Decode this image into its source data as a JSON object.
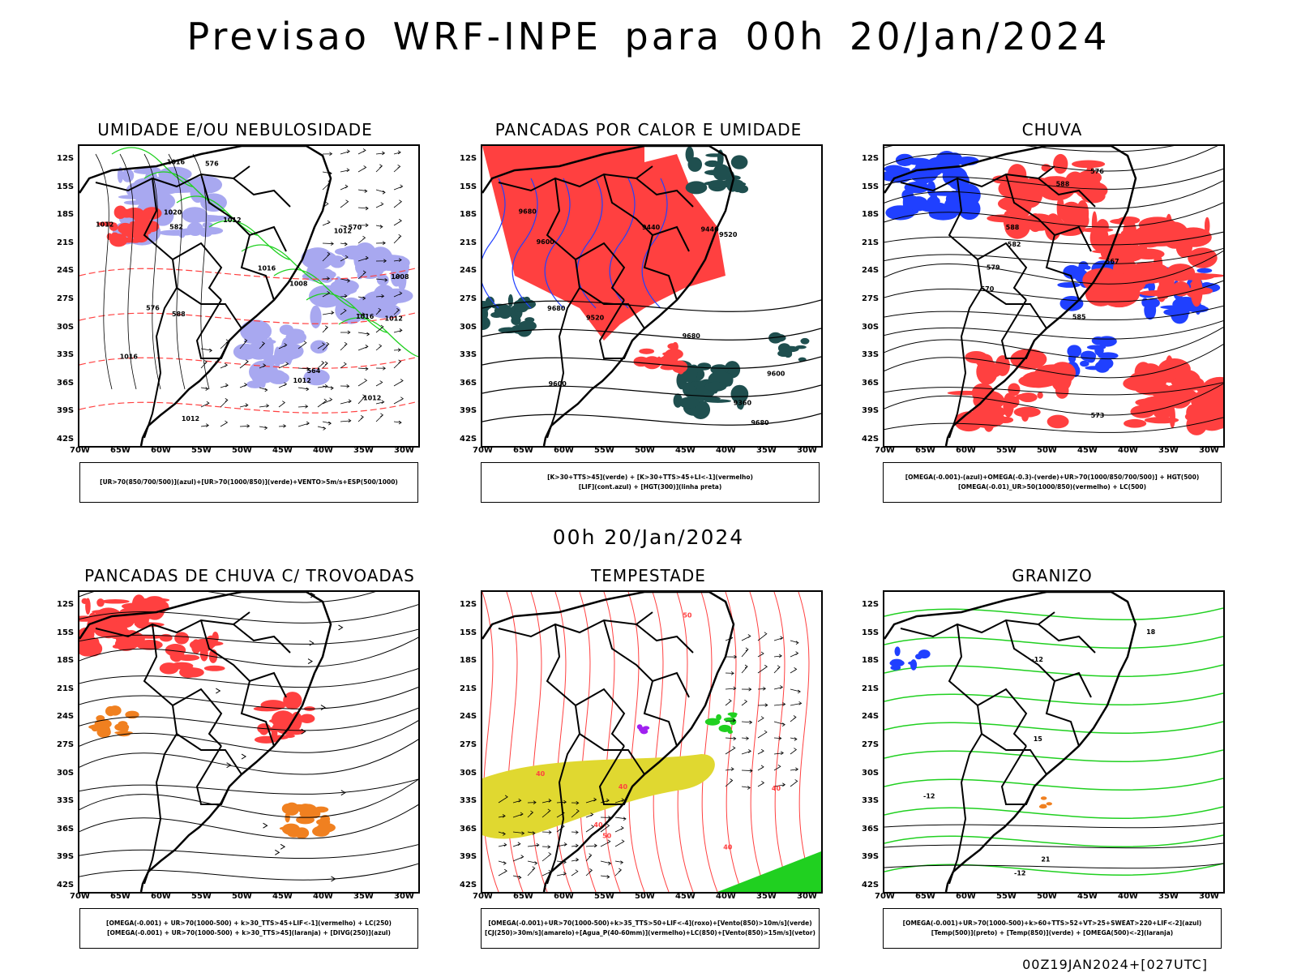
{
  "title": "Previsao WRF-INPE  para 00h 20/Jan/2024",
  "subtitle": "00h 20/Jan/2024",
  "footer": "00Z19JAN2024+[027UTC]",
  "axes": {
    "lat_labels": [
      "12S",
      "15S",
      "18S",
      "21S",
      "24S",
      "27S",
      "30S",
      "33S",
      "36S",
      "39S",
      "42S"
    ],
    "lon_labels": [
      "70W",
      "65W",
      "60W",
      "55W",
      "50W",
      "45W",
      "40W",
      "35W",
      "30W"
    ]
  },
  "colors": {
    "red": "#ff4040",
    "green": "#20d020",
    "blue": "#2040ff",
    "lavender": "#a8a8f0",
    "darkteal": "#1f4f4f",
    "yellow": "#e0d830",
    "orange": "#f08020",
    "purple": "#a020f0"
  },
  "panels": [
    {
      "title": "UMIDADE E/OU NEBULOSIDADE",
      "legend": [
        "[UR>70(850/700/500)](azul)+[UR>70(1000/850)](verde)+VENTO>5m/s+ESP(500/1000)"
      ],
      "contour_labels": [
        "1012",
        "1012",
        "1012",
        "1012",
        "1020",
        "1012",
        "1016",
        "1012",
        "1008",
        "1008",
        "1012",
        "1016",
        "1016",
        "1016",
        "576",
        "576",
        "570",
        "564",
        "582",
        "588"
      ]
    },
    {
      "title": "PANCADAS POR CALOR E UMIDADE",
      "legend": [
        "[K>30+TTS>45](verde) + [K>30+TTS>45+LI<-1](vermelho)",
        "[LIF](cont.azul) + [HGT(300)](linha preta)"
      ],
      "contour_labels": [
        "9680",
        "9680",
        "9680",
        "9680",
        "9600",
        "9600",
        "9600",
        "9520",
        "9520",
        "9440",
        "9440",
        "9360"
      ]
    },
    {
      "title": "CHUVA",
      "legend": [
        "[OMEGA(-0.001)-(azul)+OMEGA(-0.3)-(verde)+UR>70(1000/850/700/500)] + HGT(500)",
        "[OMEGA(-0.01)_UR>50(1000/850)(vermelho) + LC(500)"
      ],
      "contour_labels": [
        "588",
        "585",
        "582",
        "579",
        "576",
        "573",
        "570",
        "567",
        "588"
      ]
    },
    {
      "title": "PANCADAS DE CHUVA C/ TROVOADAS",
      "legend": [
        "[OMEGA(-0.001) + UR>70(1000-500) + k>30_TTS>45+LIF<-1](vermelho) + LC(250)",
        "[OMEGA(-0.001) + UR>70(1000-500) + k>30_TTS>45](laranja) + [DIVG(250)](azul)"
      ],
      "contour_labels": []
    },
    {
      "title": "TEMPESTADE",
      "legend": [
        "[OMEGA(-0.001)+UR>70(1000-500)+k>35_TTS>50+LIF<-4](roxo)+[Vento(850)>10m/s](verde)",
        "[CJ(250)>30m/s](amarelo)+[Agua_P(40-60mm)](vermelho)+LC(850)+[Vento(850)>15m/s](vetor)"
      ],
      "contour_labels": [
        "40",
        "40",
        "50",
        "40",
        "50",
        "40",
        "40"
      ]
    },
    {
      "title": "GRANIZO",
      "legend": [
        "[OMEGA(-0.001)+UR>70(1000-500)+k>60+TTS>52+VT>25+SWEAT>220+LIF<-2](azul)",
        "[Temp(500)](preto) + [Temp(850)](verde) + [OMEGA(500)<-2](laranja)"
      ],
      "contour_labels": [
        "21",
        "15",
        "-12",
        "-12",
        "-12",
        "18"
      ]
    }
  ]
}
